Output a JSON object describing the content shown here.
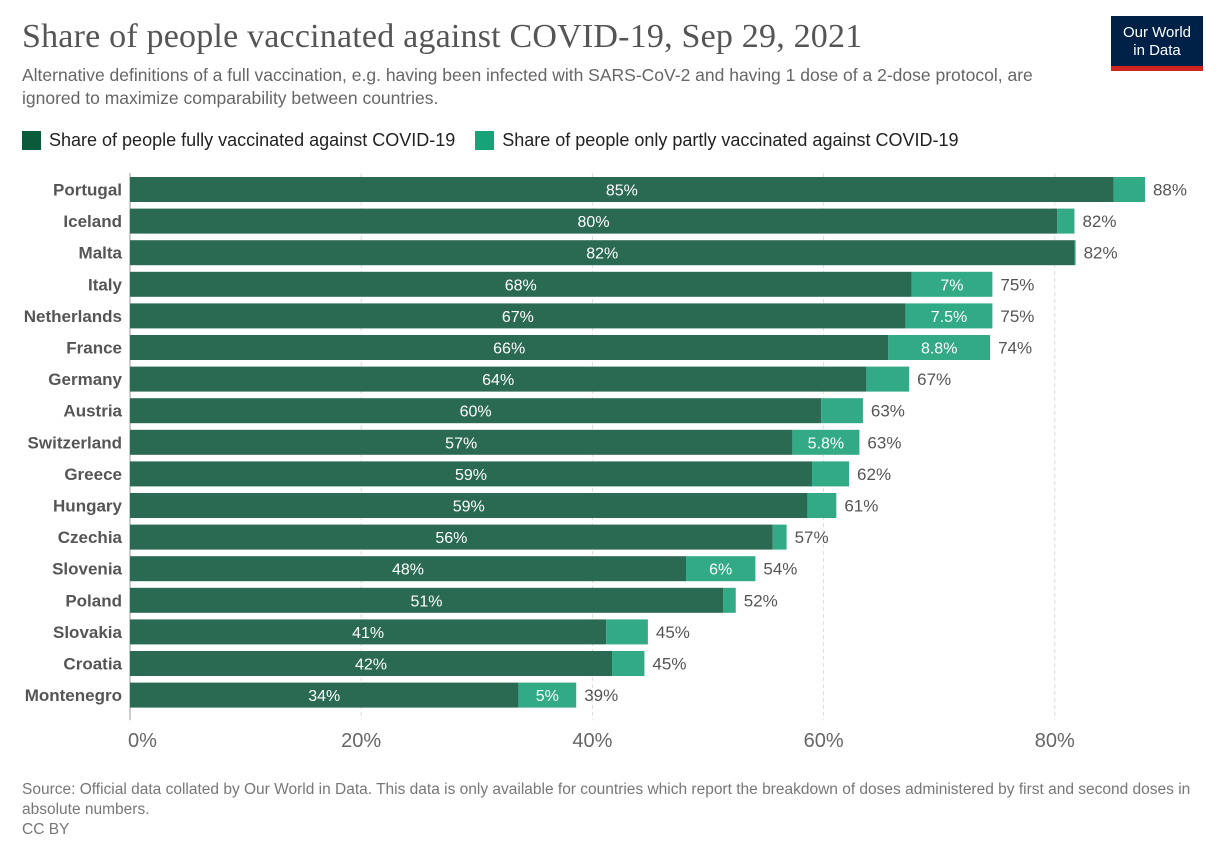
{
  "header": {
    "title": "Share of people vaccinated against COVID-19, Sep 29, 2021",
    "subtitle": "Alternative definitions of a full vaccination, e.g. having been infected with SARS-CoV-2 and having 1 dose of a 2-dose protocol, are ignored to maximize comparability between countries.",
    "logo_line1": "Our World",
    "logo_line2": "in Data"
  },
  "colors": {
    "fully": "#2a6a53",
    "partly": "#31aa85",
    "logo_bg": "#002147",
    "logo_accent": "#ce261e",
    "label_dark": "#555555",
    "grid": "#dddddd"
  },
  "chart_data": {
    "type": "bar",
    "orientation": "horizontal",
    "stacked": true,
    "title": "Share of people vaccinated against COVID-19, Sep 29, 2021",
    "xlabel": "",
    "ylabel": "",
    "xlim": [
      0,
      88
    ],
    "x_ticks": [
      0,
      20,
      40,
      60,
      80
    ],
    "x_tick_labels": [
      "0%",
      "20%",
      "40%",
      "60%",
      "80%"
    ],
    "grid": "vertical dashed",
    "legend_position": "top-left",
    "categories": [
      "Portugal",
      "Iceland",
      "Malta",
      "Italy",
      "Netherlands",
      "France",
      "Germany",
      "Austria",
      "Switzerland",
      "Greece",
      "Hungary",
      "Czechia",
      "Slovenia",
      "Poland",
      "Slovakia",
      "Croatia",
      "Montenegro"
    ],
    "series": [
      {
        "name": "Share of people fully vaccinated against COVID-19",
        "values": [
          85.1,
          80.2,
          81.7,
          67.6,
          67.1,
          65.6,
          63.7,
          59.8,
          57.3,
          59.0,
          58.6,
          55.6,
          48.1,
          51.3,
          41.2,
          41.7,
          33.6
        ],
        "labels": [
          "85%",
          "80%",
          "82%",
          "68%",
          "67%",
          "66%",
          "64%",
          "60%",
          "57%",
          "59%",
          "59%",
          "56%",
          "48%",
          "51%",
          "41%",
          "42%",
          "34%"
        ]
      },
      {
        "name": "Share of people only partly vaccinated against COVID-19",
        "values": [
          2.7,
          1.5,
          0.1,
          7.0,
          7.5,
          8.8,
          3.7,
          3.6,
          5.8,
          3.2,
          2.5,
          1.2,
          6.0,
          1.1,
          3.6,
          2.8,
          5.0
        ],
        "labels": [
          "",
          "",
          "",
          "7%",
          "7.5%",
          "8.8%",
          "",
          "",
          "5.8%",
          "",
          "",
          "",
          "6%",
          "",
          "",
          "",
          "5%"
        ]
      }
    ],
    "totals": [
      "88%",
      "82%",
      "82%",
      "75%",
      "75%",
      "74%",
      "67%",
      "63%",
      "63%",
      "62%",
      "61%",
      "57%",
      "54%",
      "52%",
      "45%",
      "45%",
      "39%"
    ]
  },
  "footer": {
    "source": "Source: Official data collated by Our World in Data. This data is only available for countries which report the breakdown of doses administered by first and second doses in absolute numbers.",
    "license": "CC BY"
  }
}
